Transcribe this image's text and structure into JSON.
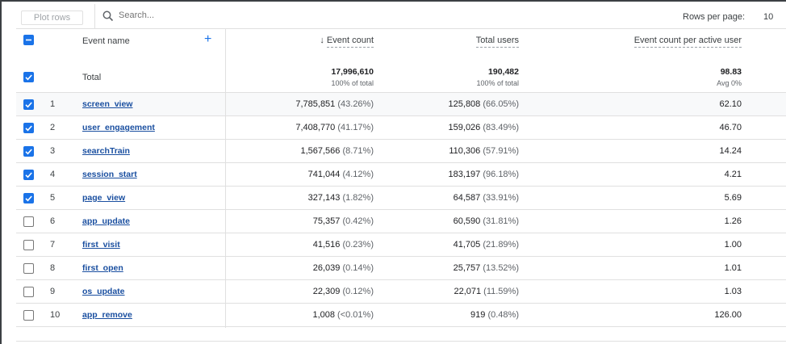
{
  "toolbar": {
    "plot_rows": "Plot rows",
    "search_placeholder": "Search...",
    "rows_per_page_label": "Rows per page:",
    "rows_per_page_value": "10"
  },
  "header": {
    "event_name": "Event name",
    "event_count": "Event count",
    "total_users": "Total users",
    "per_user": "Event count per active user",
    "add_icon": "+"
  },
  "total": {
    "label": "Total",
    "event_count": "17,996,610",
    "event_count_sub": "100% of total",
    "total_users": "190,482",
    "total_users_sub": "100% of total",
    "per_user": "98.83",
    "per_user_sub": "Avg 0%"
  },
  "rows": [
    {
      "n": "1",
      "name": "screen_view",
      "ec": "7,785,851",
      "ecp": "(43.26%)",
      "tu": "125,808",
      "tup": "(66.05%)",
      "pu": "62.10",
      "checked": true
    },
    {
      "n": "2",
      "name": "user_engagement",
      "ec": "7,408,770",
      "ecp": "(41.17%)",
      "tu": "159,026",
      "tup": "(83.49%)",
      "pu": "46.70",
      "checked": true
    },
    {
      "n": "3",
      "name": "searchTrain",
      "ec": "1,567,566",
      "ecp": "(8.71%)",
      "tu": "110,306",
      "tup": "(57.91%)",
      "pu": "14.24",
      "checked": true
    },
    {
      "n": "4",
      "name": "session_start",
      "ec": "741,044",
      "ecp": "(4.12%)",
      "tu": "183,197",
      "tup": "(96.18%)",
      "pu": "4.21",
      "checked": true
    },
    {
      "n": "5",
      "name": "page_view",
      "ec": "327,143",
      "ecp": "(1.82%)",
      "tu": "64,587",
      "tup": "(33.91%)",
      "pu": "5.69",
      "checked": true
    },
    {
      "n": "6",
      "name": "app_update",
      "ec": "75,357",
      "ecp": "(0.42%)",
      "tu": "60,590",
      "tup": "(31.81%)",
      "pu": "1.26",
      "checked": false
    },
    {
      "n": "7",
      "name": "first_visit",
      "ec": "41,516",
      "ecp": "(0.23%)",
      "tu": "41,705",
      "tup": "(21.89%)",
      "pu": "1.00",
      "checked": false
    },
    {
      "n": "8",
      "name": "first_open",
      "ec": "26,039",
      "ecp": "(0.14%)",
      "tu": "25,757",
      "tup": "(13.52%)",
      "pu": "1.01",
      "checked": false
    },
    {
      "n": "9",
      "name": "os_update",
      "ec": "22,309",
      "ecp": "(0.12%)",
      "tu": "22,071",
      "tup": "(11.59%)",
      "pu": "1.03",
      "checked": false
    },
    {
      "n": "10",
      "name": "app_remove",
      "ec": "1,008",
      "ecp": "(<0.01%)",
      "tu": "919",
      "tup": "(0.48%)",
      "pu": "126.00",
      "checked": false
    }
  ]
}
